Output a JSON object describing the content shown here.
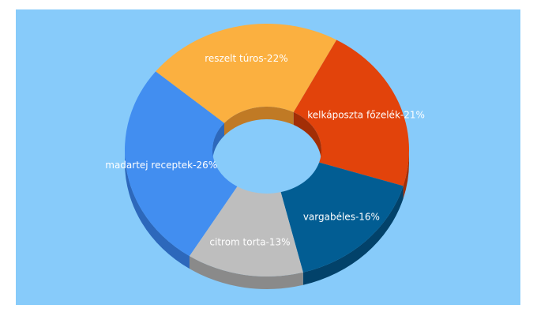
{
  "chart_data": {
    "type": "pie",
    "style": "3d-donut",
    "slices": [
      {
        "label": "madartej receptek",
        "value": 26,
        "display": "madartej receptek-26%",
        "color": "#428ef0",
        "side": "#2d68bb"
      },
      {
        "label": "reszelt túros",
        "value": 22,
        "display": "reszelt túros-22%",
        "color": "#fbb040",
        "side": "#c07a25"
      },
      {
        "label": "kelkáposzta főzelék",
        "value": 21,
        "display": "kelkáposzta főzelék-21%",
        "color": "#e2430b",
        "side": "#a22e06"
      },
      {
        "label": "vargabéles",
        "value": 16,
        "display": "vargabéles-16%",
        "color": "#025d93",
        "side": "#02426a"
      },
      {
        "label": "citrom torta",
        "value": 13,
        "display": "citrom torta-13%",
        "color": "#bebebe",
        "side": "#8a8a8a"
      }
    ],
    "background": "#87cbfa"
  }
}
